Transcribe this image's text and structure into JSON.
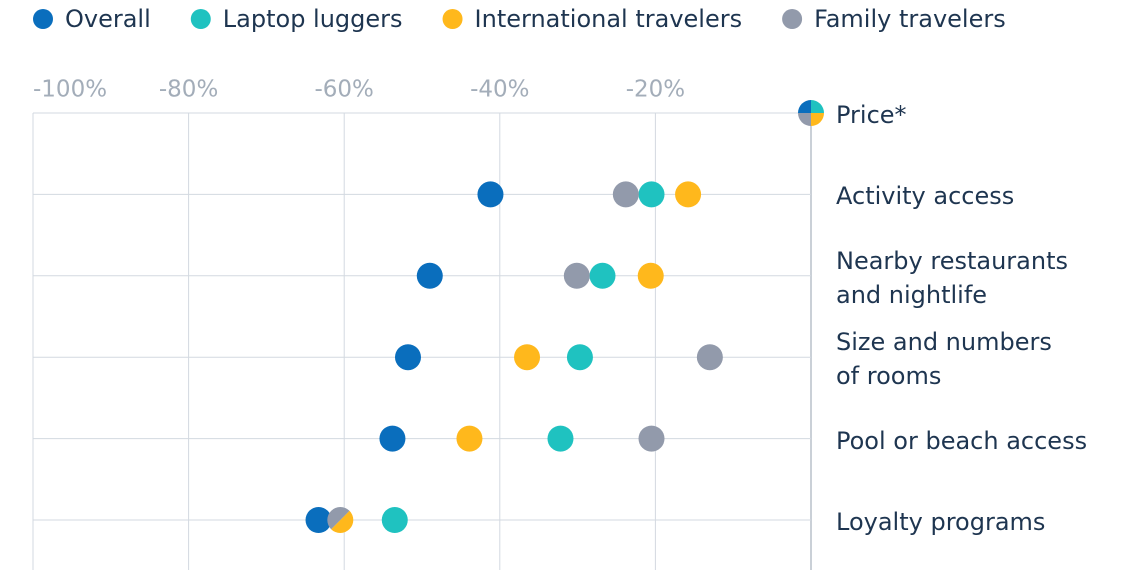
{
  "chart_data": {
    "type": "dot",
    "categories": [
      "Price*",
      "Activity access",
      "Nearby restaurants\nand nightlife",
      "Size and numbers\nof rooms",
      "Pool or beach access",
      "Loyalty programs"
    ],
    "series": [
      {
        "name": "Overall",
        "color": "#0a6ebd",
        "values": [
          0,
          -41.2,
          -49,
          -51.8,
          -53.8,
          -63.3
        ]
      },
      {
        "name": "Laptop luggers",
        "color": "#1fc2c0",
        "values": [
          0,
          -20.5,
          -26.8,
          -29.7,
          -32.2,
          -53.5
        ]
      },
      {
        "name": "International travelers",
        "color": "#ffb81c",
        "values": [
          0,
          -15.8,
          -20.6,
          -36.5,
          -43.9,
          -60.5
        ]
      },
      {
        "name": "Family travelers",
        "color": "#929aab",
        "values": [
          0,
          -23.8,
          -30.1,
          -13,
          -20.5,
          -60.5
        ]
      }
    ],
    "xlim": [
      -100,
      0
    ],
    "xticks": [
      {
        "value": -100,
        "label": "-100%"
      },
      {
        "value": -80,
        "label": "-80%"
      },
      {
        "value": -60,
        "label": "-60%"
      },
      {
        "value": -40,
        "label": "-40%"
      },
      {
        "value": -20,
        "label": "-20%"
      }
    ],
    "grid": true
  }
}
